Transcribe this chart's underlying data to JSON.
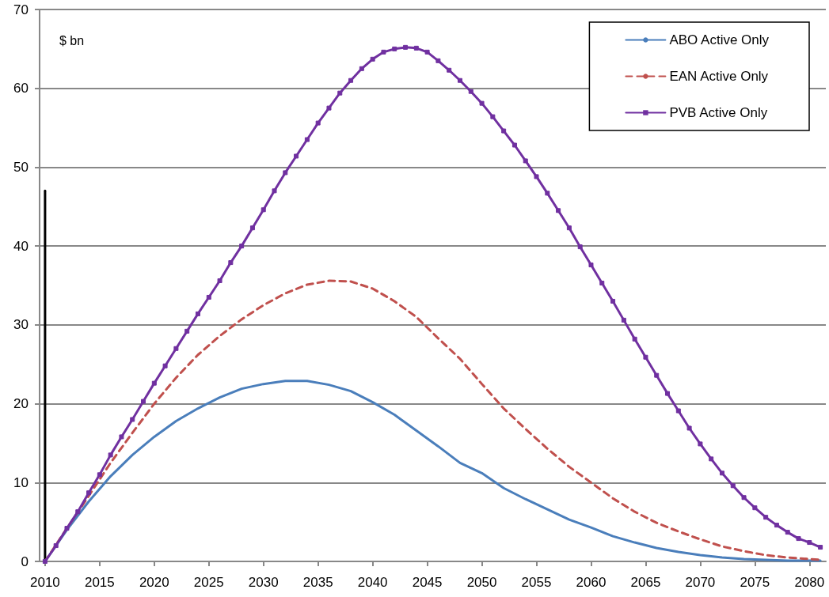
{
  "chart_data": {
    "type": "line",
    "ylabel": "$ bn",
    "xlim": [
      2009.5,
      2081.5
    ],
    "xticks": [
      2010,
      2015,
      2020,
      2025,
      2030,
      2035,
      2040,
      2045,
      2050,
      2055,
      2060,
      2065,
      2070,
      2075,
      2080
    ],
    "ylim": [
      0,
      70
    ],
    "yticks": [
      0,
      10,
      20,
      30,
      40,
      50,
      60,
      70
    ],
    "grid": "y",
    "legend": "top right",
    "series": [
      {
        "name": "ABO Active Only",
        "color": "#4a7ebb",
        "line_style": "solid",
        "marker": "none",
        "x": [
          2010,
          2012,
          2014,
          2016,
          2018,
          2020,
          2022,
          2024,
          2026,
          2028,
          2030,
          2032,
          2034,
          2036,
          2038,
          2040,
          2042,
          2044,
          2046,
          2048,
          2050,
          2052,
          2054,
          2056,
          2058,
          2060,
          2062,
          2064,
          2066,
          2068,
          2070,
          2072,
          2074,
          2076,
          2078,
          2080,
          2081
        ],
        "values": [
          0,
          4,
          7.6,
          10.8,
          13.5,
          15.8,
          17.8,
          19.4,
          20.8,
          21.9,
          22.5,
          22.9,
          22.9,
          22.4,
          21.6,
          20.2,
          18.6,
          16.6,
          14.6,
          12.5,
          11.2,
          9.3,
          7.9,
          6.6,
          5.3,
          4.3,
          3.2,
          2.4,
          1.7,
          1.2,
          0.8,
          0.5,
          0.3,
          0.2,
          0.1,
          0.1,
          0.1
        ]
      },
      {
        "name": "EAN Active Only",
        "color": "#c0504d",
        "line_style": "dashed",
        "marker": "none",
        "x": [
          2010,
          2012,
          2014,
          2016,
          2018,
          2020,
          2022,
          2024,
          2026,
          2028,
          2030,
          2032,
          2034,
          2036,
          2038,
          2040,
          2042,
          2044,
          2046,
          2048,
          2050,
          2052,
          2054,
          2056,
          2058,
          2060,
          2062,
          2064,
          2066,
          2068,
          2070,
          2072,
          2074,
          2076,
          2078,
          2080,
          2081
        ],
        "values": [
          0,
          4.2,
          8.3,
          12.5,
          16.3,
          20,
          23.3,
          26.2,
          28.6,
          30.7,
          32.5,
          34,
          35.1,
          35.6,
          35.5,
          34.6,
          33,
          31,
          28.3,
          25.7,
          22.5,
          19.4,
          16.8,
          14.3,
          12,
          10,
          8,
          6.3,
          4.9,
          3.8,
          2.8,
          1.9,
          1.3,
          0.8,
          0.5,
          0.3,
          0.2
        ]
      },
      {
        "name": "PVB Active Only",
        "color": "#7030a0",
        "line_style": "solid",
        "marker": "square",
        "x": [
          2010,
          2011,
          2012,
          2013,
          2014,
          2015,
          2016,
          2017,
          2018,
          2019,
          2020,
          2021,
          2022,
          2023,
          2024,
          2025,
          2026,
          2027,
          2028,
          2029,
          2030,
          2031,
          2032,
          2033,
          2034,
          2035,
          2036,
          2037,
          2038,
          2039,
          2040,
          2041,
          2042,
          2043,
          2044,
          2045,
          2046,
          2047,
          2048,
          2049,
          2050,
          2051,
          2052,
          2053,
          2054,
          2055,
          2056,
          2057,
          2058,
          2059,
          2060,
          2061,
          2062,
          2063,
          2064,
          2065,
          2066,
          2067,
          2068,
          2069,
          2070,
          2071,
          2072,
          2073,
          2074,
          2075,
          2076,
          2077,
          2078,
          2079,
          2080,
          2081
        ],
        "values": [
          0,
          2,
          4.2,
          6.3,
          8.7,
          11,
          13.5,
          15.8,
          18,
          20.3,
          22.6,
          24.8,
          27,
          29.2,
          31.4,
          33.5,
          35.6,
          37.9,
          40,
          42.3,
          44.6,
          47,
          49.3,
          51.4,
          53.5,
          55.6,
          57.5,
          59.4,
          61,
          62.5,
          63.7,
          64.6,
          65,
          65.2,
          65.1,
          64.6,
          63.5,
          62.3,
          61,
          59.6,
          58.1,
          56.4,
          54.6,
          52.8,
          50.8,
          48.8,
          46.7,
          44.5,
          42.3,
          39.9,
          37.6,
          35.3,
          33,
          30.6,
          28.2,
          25.9,
          23.6,
          21.3,
          19.1,
          16.9,
          14.9,
          13,
          11.2,
          9.6,
          8.1,
          6.8,
          5.6,
          4.6,
          3.7,
          2.9,
          2.4,
          1.8
        ]
      },
      {
        "color": "#000000",
        "line_style": "solid",
        "marker": "none",
        "x": [
          2010,
          2010
        ],
        "values": [
          0,
          47
        ]
      }
    ]
  }
}
